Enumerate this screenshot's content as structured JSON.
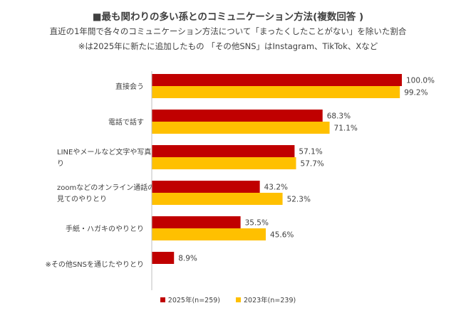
{
  "title": "■最も関わりの多い孫とのコミュニケーション方法(複数回答 )",
  "subtitle": "直近の1年間で各々のコミュニケーション方法について「まったくしたことがない」を除いた割合",
  "note": "※は2025年に新たに追加したもの 「その他SNS」はInstagram、TikTok、Xなど",
  "colors": {
    "series_2025": "#C00000",
    "series_2023": "#FFC000"
  },
  "chart_data": {
    "type": "bar",
    "orientation": "horizontal",
    "categories": [
      "直接会う",
      "電話で話す",
      "LINEやメールなど文字や写真でのやりとり",
      "zoomなどのオンライン通話の動画で顔を見てのやりとり",
      "手紙・ハガキのやりとり",
      "※その他SNSを通じたやりとり"
    ],
    "series": [
      {
        "name": "2025年(n=259)",
        "values": [
          100.0,
          68.3,
          57.1,
          43.2,
          35.5,
          8.9
        ],
        "labels": [
          "100.0%",
          "68.3%",
          "57.1%",
          "43.2%",
          "35.5%",
          "8.9%"
        ]
      },
      {
        "name": "2023年(n=239)",
        "values": [
          99.2,
          71.1,
          57.7,
          52.3,
          45.6,
          null
        ],
        "labels": [
          "99.2%",
          "71.1%",
          "57.7%",
          "52.3%",
          "45.6%",
          ""
        ]
      }
    ],
    "xlim": [
      0,
      100
    ],
    "grid": false,
    "legend": "bottom"
  }
}
